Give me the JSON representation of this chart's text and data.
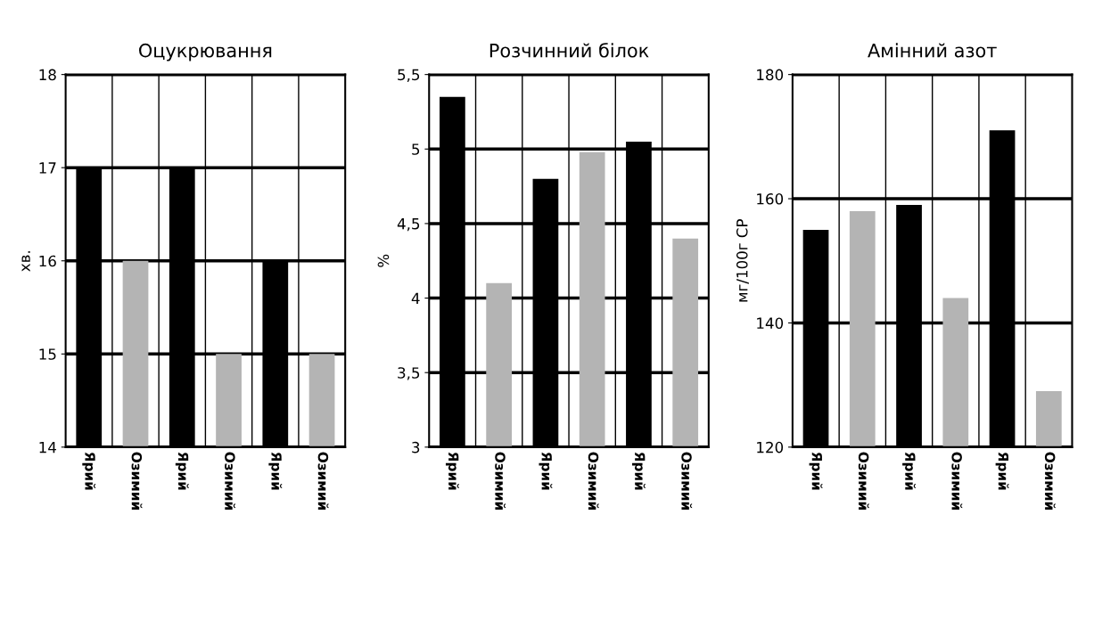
{
  "chart_data": [
    {
      "type": "bar",
      "title": "Оцукрювання",
      "ylabel": "хв.",
      "categories": [
        "Ярий",
        "Озимий",
        "Ярий",
        "Озимий",
        "Ярий",
        "Озимий"
      ],
      "values": [
        17,
        16,
        17,
        15,
        16,
        15
      ],
      "colors": [
        "#000000",
        "#b4b4b4",
        "#000000",
        "#b4b4b4",
        "#000000",
        "#b4b4b4"
      ],
      "ylim": [
        14,
        18
      ],
      "yticks": [
        14,
        15,
        16,
        17,
        18
      ],
      "grid": true
    },
    {
      "type": "bar",
      "title": "Розчинний білок",
      "ylabel": "%",
      "categories": [
        "Ярий",
        "Озимий",
        "Ярий",
        "Озимий",
        "Ярий",
        "Озимий"
      ],
      "values": [
        5.35,
        4.1,
        4.8,
        4.98,
        5.05,
        4.4
      ],
      "colors": [
        "#000000",
        "#b4b4b4",
        "#000000",
        "#b4b4b4",
        "#000000",
        "#b4b4b4"
      ],
      "ylim": [
        3,
        5.5
      ],
      "yticks": [
        {
          "value": 3,
          "label": "3"
        },
        {
          "value": 3.5,
          "label": "3,5"
        },
        {
          "value": 4,
          "label": "4"
        },
        {
          "value": 4.5,
          "label": "4,5"
        },
        {
          "value": 5,
          "label": "5"
        },
        {
          "value": 5.5,
          "label": "5,5"
        }
      ],
      "grid": true
    },
    {
      "type": "bar",
      "title": "Амінний азот",
      "ylabel": "мг/100г СР",
      "categories": [
        "Ярий",
        "Озимий",
        "Ярий",
        "Озимий",
        "Ярий",
        "Озимий"
      ],
      "values": [
        155,
        158,
        159,
        144,
        171,
        129
      ],
      "colors": [
        "#000000",
        "#b4b4b4",
        "#000000",
        "#b4b4b4",
        "#000000",
        "#b4b4b4"
      ],
      "ylim": [
        120,
        180
      ],
      "yticks": [
        120,
        140,
        160,
        180
      ],
      "grid": true
    }
  ]
}
